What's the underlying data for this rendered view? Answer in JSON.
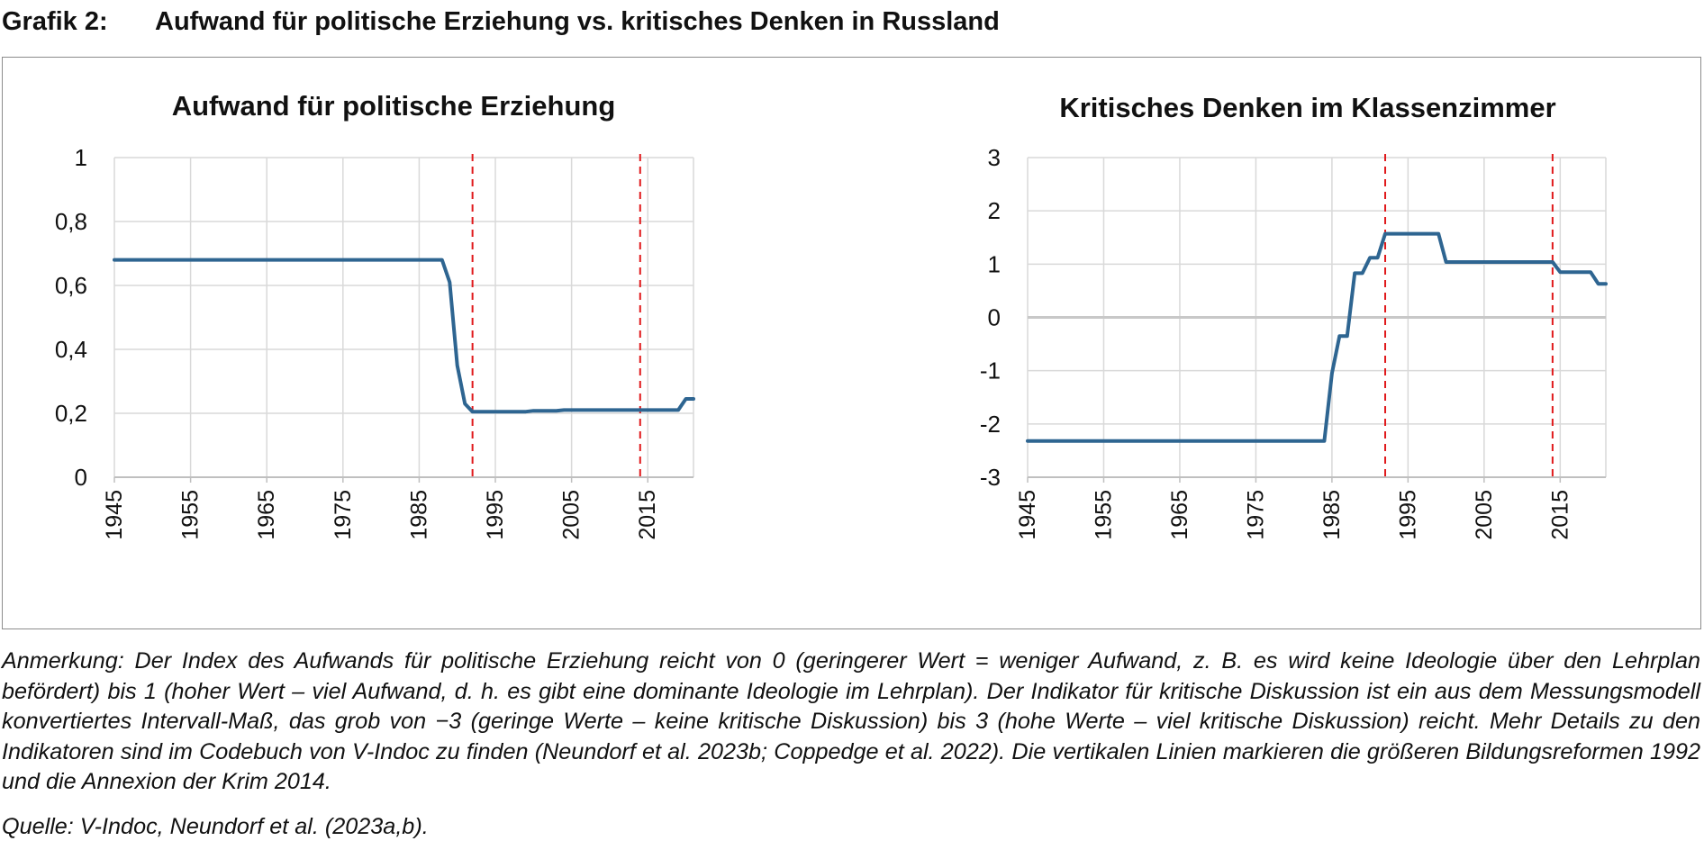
{
  "figure": {
    "number": "Grafik 2:",
    "title": "Aufwand für politische Erziehung vs. kritisches Denken in Russland"
  },
  "note": "Anmerkung: Der Index des Aufwands für politische Erziehung reicht von 0 (geringerer Wert = weniger Aufwand, z. B. es wird keine Ideologie über den Lehrplan befördert) bis 1 (hoher Wert – viel Aufwand, d. h. es gibt eine dominante Ideologie im Lehrplan). Der Indikator für kritische Diskussion ist ein aus dem Messungsmodell konvertiertes Intervall-Maß, das grob von −3 (geringe Werte – keine kritische Diskussion) bis 3 (hohe Werte – viel kritische Diskussion) reicht. Mehr Details zu den Indikatoren sind im Codebuch von V-Indoc zu finden (Neundorf et al. 2023b; Coppedge et al. 2022). Die vertikalen Linien markieren die größeren Bildungsreformen 1992 und die Annexion der Krim 2014.",
  "source": "Quelle: V-Indoc, Neundorf et al. (2023a,b).",
  "colors": {
    "line": "#2e6591",
    "reference": "#e0191b",
    "grid": "#d9d9d9",
    "axis": "#bfbfbf"
  },
  "chart_data": [
    {
      "type": "line",
      "title": "Aufwand für politische Erziehung",
      "xlabel": "",
      "ylabel": "",
      "xlim": [
        1945,
        2021
      ],
      "ylim": [
        0,
        1
      ],
      "x_ticks": [
        "1945",
        "1955",
        "1965",
        "1975",
        "1985",
        "1995",
        "2005",
        "2015"
      ],
      "y_ticks": [
        {
          "value": 0,
          "label": "0"
        },
        {
          "value": 0.2,
          "label": "0,2"
        },
        {
          "value": 0.4,
          "label": "0,4"
        },
        {
          "value": 0.6,
          "label": "0,6"
        },
        {
          "value": 0.8,
          "label": "0,8"
        },
        {
          "value": 1,
          "label": "1"
        }
      ],
      "grid": true,
      "reference_lines_x": [
        1992,
        2014
      ],
      "series": [
        {
          "values": [
            [
              1945,
              0.68
            ],
            [
              1988,
              0.68
            ],
            [
              1989,
              0.61
            ],
            [
              1990,
              0.35
            ],
            [
              1991,
              0.23
            ],
            [
              1992,
              0.205
            ],
            [
              1999,
              0.205
            ],
            [
              2000,
              0.208
            ],
            [
              2003,
              0.208
            ],
            [
              2004,
              0.21
            ],
            [
              2019,
              0.21
            ],
            [
              2020,
              0.245
            ],
            [
              2021,
              0.245
            ]
          ]
        }
      ]
    },
    {
      "type": "line",
      "title": "Kritisches Denken im Klassenzimmer",
      "xlabel": "",
      "ylabel": "",
      "xlim": [
        1945,
        2021
      ],
      "ylim": [
        -3,
        3
      ],
      "x_ticks": [
        "1945",
        "1955",
        "1965",
        "1975",
        "1985",
        "1995",
        "2005",
        "2015"
      ],
      "y_ticks": [
        {
          "value": -3,
          "label": "-3"
        },
        {
          "value": -2,
          "label": "-2"
        },
        {
          "value": -1,
          "label": "-1"
        },
        {
          "value": 0,
          "label": "0"
        },
        {
          "value": 1,
          "label": "1"
        },
        {
          "value": 2,
          "label": "2"
        },
        {
          "value": 3,
          "label": "3"
        }
      ],
      "grid": true,
      "reference_lines_x": [
        1992,
        2014
      ],
      "series": [
        {
          "values": [
            [
              1945,
              -2.32
            ],
            [
              1984,
              -2.32
            ],
            [
              1985,
              -1.05
            ],
            [
              1986,
              -0.35
            ],
            [
              1987,
              -0.35
            ],
            [
              1988,
              0.83
            ],
            [
              1989,
              0.83
            ],
            [
              1990,
              1.12
            ],
            [
              1991,
              1.12
            ],
            [
              1992,
              1.57
            ],
            [
              1999,
              1.57
            ],
            [
              2000,
              1.04
            ],
            [
              2014,
              1.04
            ],
            [
              2015,
              0.85
            ],
            [
              2019,
              0.85
            ],
            [
              2020,
              0.63
            ],
            [
              2021,
              0.63
            ]
          ]
        }
      ]
    }
  ]
}
